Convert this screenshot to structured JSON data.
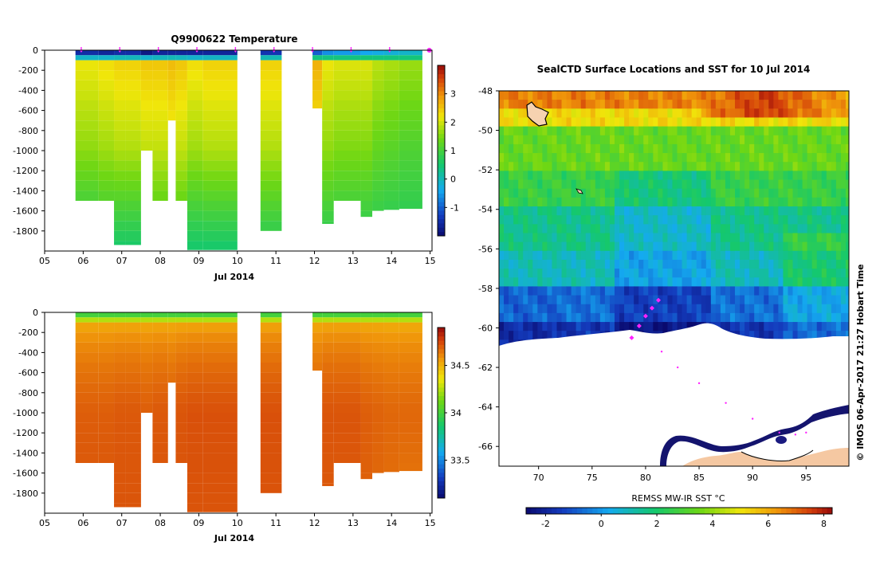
{
  "chart_data": [
    {
      "type": "heatmap",
      "title": "Q9900622  Temperature",
      "variable": "temperature",
      "x_ticks": [
        "05",
        "06",
        "07",
        "08",
        "09",
        "10",
        "11",
        "12",
        "13",
        "14",
        "15"
      ],
      "xlabel": "Jul 2014",
      "ylabel": "",
      "y_ticks": [
        0,
        -200,
        -400,
        -600,
        -800,
        -1000,
        -1200,
        -1400,
        -1600,
        -1800
      ],
      "xlim": [
        5.0,
        15.05
      ],
      "ylim": [
        -2000,
        0
      ],
      "colorbar": {
        "range": [
          -2.0,
          4.0
        ],
        "ticks": [
          -1,
          0,
          1,
          2,
          3
        ]
      },
      "surface_markers_day": [
        5.95,
        6.95,
        7.95,
        8.95,
        9.95,
        10.95,
        11.95,
        12.95,
        13.95,
        14.98
      ],
      "profiles": [
        {
          "x0": 5.8,
          "x1": 6.4,
          "bottom": -1500,
          "surface": -1.5,
          "t1000": 1.6,
          "t2000": 0.5
        },
        {
          "x0": 6.4,
          "x1": 6.8,
          "bottom": -1500,
          "surface": -1.6,
          "t1000": 1.7,
          "t2000": 0.6
        },
        {
          "x0": 6.8,
          "x1": 7.1,
          "bottom": -1940,
          "surface": -1.5,
          "t1000": 1.8,
          "t2000": 0.5
        },
        {
          "x0": 7.1,
          "x1": 7.5,
          "bottom": -1940,
          "surface": -1.5,
          "t1000": 1.8,
          "t2000": 0.5
        },
        {
          "x0": 7.5,
          "x1": 7.8,
          "bottom": -1000,
          "surface": -1.8,
          "t1000": 1.9,
          "t2000": 0.9
        },
        {
          "x0": 7.8,
          "x1": 8.2,
          "bottom": -1500,
          "surface": -1.6,
          "t1000": 1.9,
          "t2000": 0.8
        },
        {
          "x0": 8.2,
          "x1": 8.4,
          "bottom": -700,
          "surface": -1.6,
          "t1000": 2.0,
          "t2000": 1.0
        },
        {
          "x0": 8.4,
          "x1": 8.7,
          "bottom": -1500,
          "surface": -1.6,
          "t1000": 1.9,
          "t2000": 0.8
        },
        {
          "x0": 8.7,
          "x1": 9.1,
          "bottom": -1990,
          "surface": -1.6,
          "t1000": 1.7,
          "t2000": 0.5
        },
        {
          "x0": 9.1,
          "x1": 10.0,
          "bottom": -1990,
          "surface": -1.6,
          "t1000": 1.8,
          "t2000": 0.5
        },
        {
          "x0": 10.6,
          "x1": 11.15,
          "bottom": -1800,
          "surface": -1.4,
          "t1000": 1.8,
          "t2000": 0.6
        },
        {
          "x0": 11.95,
          "x1": 12.2,
          "bottom": -580,
          "surface": -1.0,
          "t1000": 2.1,
          "t2000": 1.0
        },
        {
          "x0": 12.2,
          "x1": 12.5,
          "bottom": -1730,
          "surface": -0.6,
          "t1000": 1.6,
          "t2000": 0.6
        },
        {
          "x0": 12.5,
          "x1": 13.2,
          "bottom": -1500,
          "surface": -0.5,
          "t1000": 1.5,
          "t2000": 0.6
        },
        {
          "x0": 13.2,
          "x1": 13.5,
          "bottom": -1660,
          "surface": -0.4,
          "t1000": 1.5,
          "t2000": 0.6
        },
        {
          "x0": 13.5,
          "x1": 13.8,
          "bottom": -1600,
          "surface": -0.3,
          "t1000": 1.3,
          "t2000": 0.6
        },
        {
          "x0": 13.8,
          "x1": 14.2,
          "bottom": -1590,
          "surface": -0.2,
          "t1000": 1.2,
          "t2000": 0.6
        },
        {
          "x0": 14.2,
          "x1": 14.8,
          "bottom": -1580,
          "surface": -0.1,
          "t1000": 1.1,
          "t2000": 0.6
        }
      ]
    },
    {
      "type": "heatmap",
      "title": "",
      "variable": "salinity",
      "x_ticks": [
        "05",
        "06",
        "07",
        "08",
        "09",
        "10",
        "11",
        "12",
        "13",
        "14",
        "15"
      ],
      "xlabel": "Jul 2014",
      "ylabel": "",
      "y_ticks": [
        0,
        -200,
        -400,
        -600,
        -800,
        -1000,
        -1200,
        -1400,
        -1600,
        -1800
      ],
      "xlim": [
        5.0,
        15.05
      ],
      "ylim": [
        -2000,
        0
      ],
      "colorbar": {
        "range": [
          33.1,
          34.9
        ],
        "ticks": [
          33.5,
          34,
          34.5
        ]
      },
      "profiles": [
        {
          "x0": 5.8,
          "x1": 6.4,
          "bottom": -1500,
          "surface": 34.0,
          "t1000": 34.7,
          "t2000": 34.72
        },
        {
          "x0": 6.4,
          "x1": 6.8,
          "bottom": -1500,
          "surface": 34.0,
          "t1000": 34.7,
          "t2000": 34.72
        },
        {
          "x0": 6.8,
          "x1": 7.1,
          "bottom": -1940,
          "surface": 34.0,
          "t1000": 34.71,
          "t2000": 34.72
        },
        {
          "x0": 7.1,
          "x1": 7.5,
          "bottom": -1940,
          "surface": 34.0,
          "t1000": 34.71,
          "t2000": 34.72
        },
        {
          "x0": 7.5,
          "x1": 7.8,
          "bottom": -1000,
          "surface": 34.0,
          "t1000": 34.7,
          "t2000": 34.71
        },
        {
          "x0": 7.8,
          "x1": 8.2,
          "bottom": -1500,
          "surface": 34.0,
          "t1000": 34.71,
          "t2000": 34.72
        },
        {
          "x0": 8.2,
          "x1": 8.4,
          "bottom": -700,
          "surface": 34.0,
          "t1000": 34.7,
          "t2000": 34.71
        },
        {
          "x0": 8.4,
          "x1": 8.7,
          "bottom": -1500,
          "surface": 34.0,
          "t1000": 34.72,
          "t2000": 34.72
        },
        {
          "x0": 8.7,
          "x1": 9.1,
          "bottom": -1990,
          "surface": 34.0,
          "t1000": 34.73,
          "t2000": 34.72
        },
        {
          "x0": 9.1,
          "x1": 10.0,
          "bottom": -1990,
          "surface": 34.0,
          "t1000": 34.73,
          "t2000": 34.72
        },
        {
          "x0": 10.6,
          "x1": 11.15,
          "bottom": -1800,
          "surface": 34.0,
          "t1000": 34.73,
          "t2000": 34.72
        },
        {
          "x0": 11.95,
          "x1": 12.2,
          "bottom": -580,
          "surface": 34.0,
          "t1000": 34.7,
          "t2000": 34.71
        },
        {
          "x0": 12.2,
          "x1": 12.5,
          "bottom": -1730,
          "surface": 34.0,
          "t1000": 34.72,
          "t2000": 34.71
        },
        {
          "x0": 12.5,
          "x1": 13.2,
          "bottom": -1500,
          "surface": 34.0,
          "t1000": 34.72,
          "t2000": 34.71
        },
        {
          "x0": 13.2,
          "x1": 13.5,
          "bottom": -1660,
          "surface": 34.0,
          "t1000": 34.7,
          "t2000": 34.69
        },
        {
          "x0": 13.5,
          "x1": 13.8,
          "bottom": -1600,
          "surface": 34.0,
          "t1000": 34.69,
          "t2000": 34.67
        },
        {
          "x0": 13.8,
          "x1": 14.2,
          "bottom": -1590,
          "surface": 34.0,
          "t1000": 34.68,
          "t2000": 34.66
        },
        {
          "x0": 14.2,
          "x1": 14.8,
          "bottom": -1580,
          "surface": 34.0,
          "t1000": 34.68,
          "t2000": 34.64
        }
      ]
    },
    {
      "type": "heatmap",
      "title": "SealCTD Surface Locations and SST for 10 Jul 2014",
      "variable": "sst",
      "x_ticks": [
        "70",
        "75",
        "80",
        "85",
        "90",
        "95"
      ],
      "y_ticks": [
        "-48",
        "-50",
        "-52",
        "-54",
        "-56",
        "-58",
        "-60",
        "-62",
        "-64",
        "-66"
      ],
      "xlim": [
        66.3,
        99.0
      ],
      "ylim": [
        -67.0,
        -48.0
      ],
      "colorbar": {
        "label": "REMSS MW-IR SST °C",
        "range": [
          -2.7,
          8.3
        ],
        "ticks": [
          "-2",
          "0",
          "2",
          "4",
          "6",
          "8"
        ]
      },
      "side_caption": "©  IMOS 06-Apr-2017 21:27 Hobart Time",
      "seal_track": [
        [
          81.2,
          -58.6
        ],
        [
          80.6,
          -59.0
        ],
        [
          80.0,
          -59.4
        ],
        [
          79.4,
          -59.9
        ],
        [
          78.7,
          -60.5
        ],
        [
          81.5,
          -61.2
        ],
        [
          83.0,
          -62.0
        ],
        [
          85.0,
          -62.8
        ],
        [
          87.5,
          -63.8
        ],
        [
          90.0,
          -64.6
        ],
        [
          92.5,
          -65.3
        ],
        [
          94.0,
          -65.4
        ],
        [
          95.0,
          -65.3
        ]
      ]
    }
  ],
  "labels": {
    "top_title": "Q9900622  Temperature",
    "map_title": "SealCTD Surface Locations and SST for 10 Jul 2014",
    "jul_top": "Jul 2014",
    "jul_bottom": "Jul 2014",
    "sst_label": "REMSS MW-IR SST °C",
    "side_caption": "©  IMOS 06-Apr-2017 21:27 Hobart Time"
  }
}
